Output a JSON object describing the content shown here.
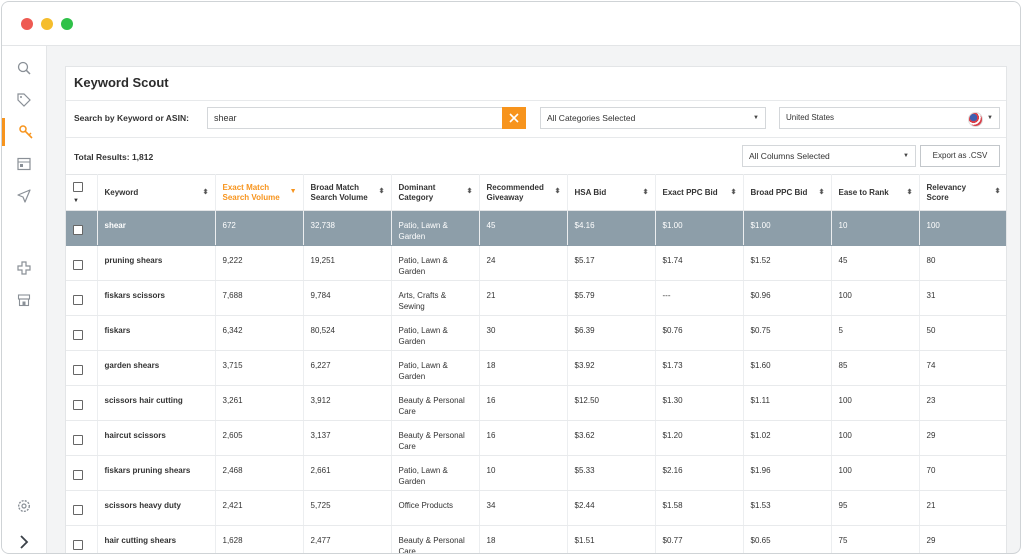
{
  "window": {
    "title": "Keyword Scout"
  },
  "sidebar": {
    "icons": [
      "magnifier-icon",
      "tag-icon",
      "key-icon",
      "layout-icon",
      "paper-plane-icon",
      "plus-cross-icon",
      "store-icon",
      "settings-icon",
      "chevron-right-icon"
    ],
    "active": "key-icon"
  },
  "search": {
    "label": "Search by Keyword or ASIN:",
    "value": "shear",
    "category": "All Categories Selected",
    "country": "United States"
  },
  "results": {
    "total_label": "Total Results:",
    "total": "1,812",
    "columns_select": "All Columns Selected",
    "export_label": "Export as .CSV"
  },
  "table": {
    "headers": [
      {
        "l1": "Keyword",
        "l2": ""
      },
      {
        "l1": "Exact Match",
        "l2": "Search Volume"
      },
      {
        "l1": "Broad Match",
        "l2": "Search Volume"
      },
      {
        "l1": "Dominant",
        "l2": "Category"
      },
      {
        "l1": "Recommended",
        "l2": "Giveaway"
      },
      {
        "l1": "HSA Bid",
        "l2": ""
      },
      {
        "l1": "Exact PPC Bid",
        "l2": ""
      },
      {
        "l1": "Broad PPC Bid",
        "l2": ""
      },
      {
        "l1": "Ease to Rank",
        "l2": ""
      },
      {
        "l1": "Relevancy",
        "l2": "Score"
      }
    ],
    "rows": [
      {
        "keyword": "shear",
        "exact": "672",
        "broad": "32,738",
        "cat1": "Patio, Lawn &",
        "cat2": "Garden",
        "giveaway": "45",
        "hsa": "$4.16",
        "exact_ppc": "$1.00",
        "broad_ppc": "$1.00",
        "ease": "10",
        "relevancy": "100"
      },
      {
        "keyword": "pruning shears",
        "exact": "9,222",
        "broad": "19,251",
        "cat1": "Patio, Lawn &",
        "cat2": "Garden",
        "giveaway": "24",
        "hsa": "$5.17",
        "exact_ppc": "$1.74",
        "broad_ppc": "$1.52",
        "ease": "45",
        "relevancy": "80"
      },
      {
        "keyword": "fiskars scissors",
        "exact": "7,688",
        "broad": "9,784",
        "cat1": "Arts, Crafts &",
        "cat2": "Sewing",
        "giveaway": "21",
        "hsa": "$5.79",
        "exact_ppc": "---",
        "broad_ppc": "$0.96",
        "ease": "100",
        "relevancy": "31"
      },
      {
        "keyword": "fiskars",
        "exact": "6,342",
        "broad": "80,524",
        "cat1": "Patio, Lawn &",
        "cat2": "Garden",
        "giveaway": "30",
        "hsa": "$6.39",
        "exact_ppc": "$0.76",
        "broad_ppc": "$0.75",
        "ease": "5",
        "relevancy": "50"
      },
      {
        "keyword": "garden shears",
        "exact": "3,715",
        "broad": "6,227",
        "cat1": "Patio, Lawn &",
        "cat2": "Garden",
        "giveaway": "18",
        "hsa": "$3.92",
        "exact_ppc": "$1.73",
        "broad_ppc": "$1.60",
        "ease": "85",
        "relevancy": "74"
      },
      {
        "keyword": "scissors hair cutting",
        "exact": "3,261",
        "broad": "3,912",
        "cat1": "Beauty & Personal",
        "cat2": "Care",
        "giveaway": "16",
        "hsa": "$12.50",
        "exact_ppc": "$1.30",
        "broad_ppc": "$1.11",
        "ease": "100",
        "relevancy": "23"
      },
      {
        "keyword": "haircut scissors",
        "exact": "2,605",
        "broad": "3,137",
        "cat1": "Beauty & Personal",
        "cat2": "Care",
        "giveaway": "16",
        "hsa": "$3.62",
        "exact_ppc": "$1.20",
        "broad_ppc": "$1.02",
        "ease": "100",
        "relevancy": "29"
      },
      {
        "keyword": "fiskars pruning shears",
        "exact": "2,468",
        "broad": "2,661",
        "cat1": "Patio, Lawn &",
        "cat2": "Garden",
        "giveaway": "10",
        "hsa": "$5.33",
        "exact_ppc": "$2.16",
        "broad_ppc": "$1.96",
        "ease": "100",
        "relevancy": "70"
      },
      {
        "keyword": "scissors heavy duty",
        "exact": "2,421",
        "broad": "5,725",
        "cat1": "Office Products",
        "cat2": "",
        "giveaway": "34",
        "hsa": "$2.44",
        "exact_ppc": "$1.58",
        "broad_ppc": "$1.53",
        "ease": "95",
        "relevancy": "21"
      },
      {
        "keyword": "hair cutting shears",
        "exact": "1,628",
        "broad": "2,477",
        "cat1": "Beauty & Personal",
        "cat2": "Care",
        "giveaway": "18",
        "hsa": "$1.51",
        "exact_ppc": "$0.77",
        "broad_ppc": "$0.65",
        "ease": "75",
        "relevancy": "29"
      }
    ]
  },
  "colors": {
    "accent": "#f7941d",
    "selected_row": "#8d9ea9"
  }
}
